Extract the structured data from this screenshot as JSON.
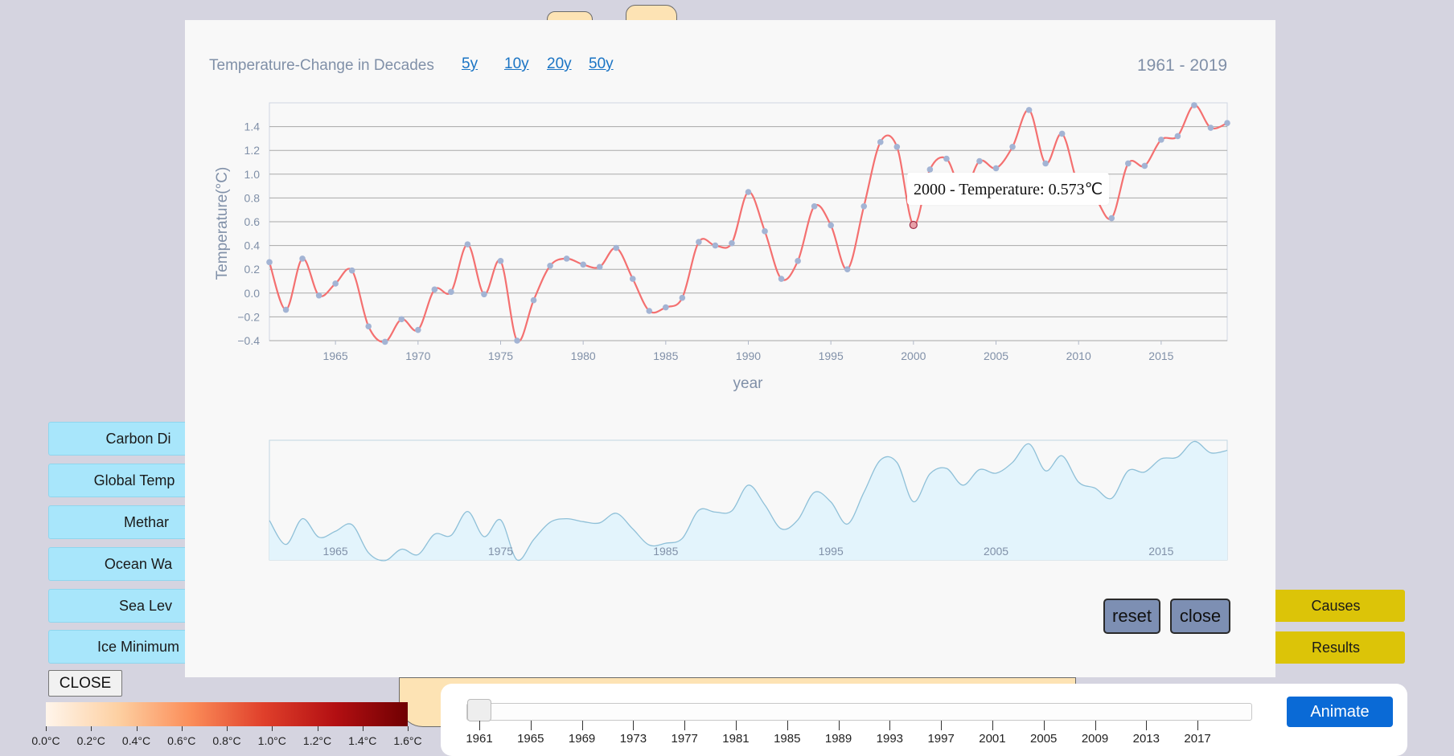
{
  "left_buttons": [
    "Carbon Di",
    "Global Temp",
    "Methar",
    "Ocean Wa",
    "Sea Lev",
    "Ice Minimum"
  ],
  "right_buttons": [
    "Causes",
    "Results"
  ],
  "close_main_label": "CLOSE",
  "legend": {
    "labels": [
      "0.0°C",
      "0.2°C",
      "0.4°C",
      "0.6°C",
      "0.8°C",
      "1.0°C",
      "1.2°C",
      "1.4°C",
      "1.6°C"
    ]
  },
  "year_slider": {
    "labels": [
      "1961",
      "1965",
      "1969",
      "1973",
      "1977",
      "1981",
      "1985",
      "1989",
      "1993",
      "1997",
      "2001",
      "2005",
      "2009",
      "2013",
      "2017"
    ],
    "value": 1961,
    "min": 1961,
    "max": 2019
  },
  "animate_label": "Animate",
  "modal": {
    "title": "Temperature-Change in Decades",
    "range_links": [
      "5y",
      "10y",
      "20y",
      "50y"
    ],
    "year_range": "1961 - 2019",
    "tooltip": "2000 - Temperature: 0.573℃",
    "reset_label": "reset",
    "close_label": "close"
  },
  "chart_data": {
    "type": "line",
    "title": "Temperature-Change in Decades",
    "xlabel": "year",
    "ylabel": "Temperature(°C)",
    "xlim": [
      1961,
      2019
    ],
    "ylim": [
      -0.4,
      1.6
    ],
    "x_ticks": [
      1965,
      1970,
      1975,
      1980,
      1985,
      1990,
      1995,
      2000,
      2005,
      2010,
      2015
    ],
    "y_ticks": [
      -0.4,
      -0.2,
      0.0,
      0.2,
      0.4,
      0.6,
      0.8,
      1.0,
      1.2,
      1.4
    ],
    "brush_ticks": [
      1965,
      1975,
      1985,
      1995,
      2005,
      2015
    ],
    "line_color": "#f47070",
    "point_color": "#a3b4d4",
    "area_fill": "#e3f4fc",
    "area_stroke": "#8fc0d8",
    "highlight_year": 2000,
    "series": [
      {
        "x": [
          1961,
          1962,
          1963,
          1964,
          1965,
          1966,
          1967,
          1968,
          1969,
          1970,
          1971,
          1972,
          1973,
          1974,
          1975,
          1976,
          1977,
          1978,
          1979,
          1980,
          1981,
          1982,
          1983,
          1984,
          1985,
          1986,
          1987,
          1988,
          1989,
          1990,
          1991,
          1992,
          1993,
          1994,
          1995,
          1996,
          1997,
          1998,
          1999,
          2000,
          2001,
          2002,
          2003,
          2004,
          2005,
          2006,
          2007,
          2008,
          2009,
          2010,
          2011,
          2012,
          2013,
          2014,
          2015,
          2016,
          2017,
          2018,
          2019
        ],
        "values": [
          0.26,
          -0.14,
          0.29,
          -0.02,
          0.08,
          0.19,
          -0.28,
          -0.41,
          -0.22,
          -0.31,
          0.03,
          0.01,
          0.41,
          -0.01,
          0.27,
          -0.4,
          -0.06,
          0.23,
          0.29,
          0.24,
          0.22,
          0.38,
          0.12,
          -0.15,
          -0.12,
          -0.04,
          0.43,
          0.4,
          0.42,
          0.85,
          0.52,
          0.12,
          0.27,
          0.73,
          0.57,
          0.2,
          0.73,
          1.27,
          1.23,
          0.573,
          1.04,
          1.13,
          0.85,
          1.11,
          1.05,
          1.23,
          1.54,
          1.09,
          1.34,
          0.9,
          0.8,
          0.63,
          1.09,
          1.07,
          1.29,
          1.32,
          1.58,
          1.39,
          1.43
        ]
      }
    ]
  }
}
